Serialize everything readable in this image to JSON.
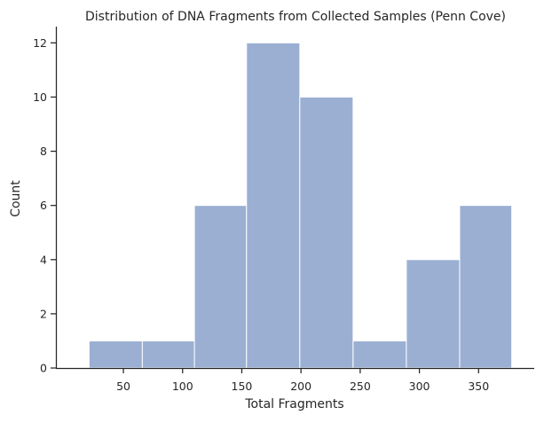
{
  "chart_data": {
    "type": "bar",
    "title": "Distribution of DNA Fragments from Collected Samples (Penn Cove)",
    "xlabel": "Total Fragments",
    "ylabel": "Count",
    "bin_edges": [
      21,
      66,
      110,
      154,
      199,
      244,
      289,
      334,
      378
    ],
    "values": [
      1,
      1,
      6,
      12,
      10,
      1,
      4,
      6
    ],
    "x_ticks": [
      50,
      100,
      150,
      200,
      250,
      300,
      350
    ],
    "y_ticks": [
      0,
      2,
      4,
      6,
      8,
      10,
      12
    ],
    "xlim": [
      -7,
      397
    ],
    "ylim": [
      0,
      12.6
    ],
    "grid": false,
    "bar_color": "#9bafd3",
    "bar_edge_color": "#ffffff"
  }
}
